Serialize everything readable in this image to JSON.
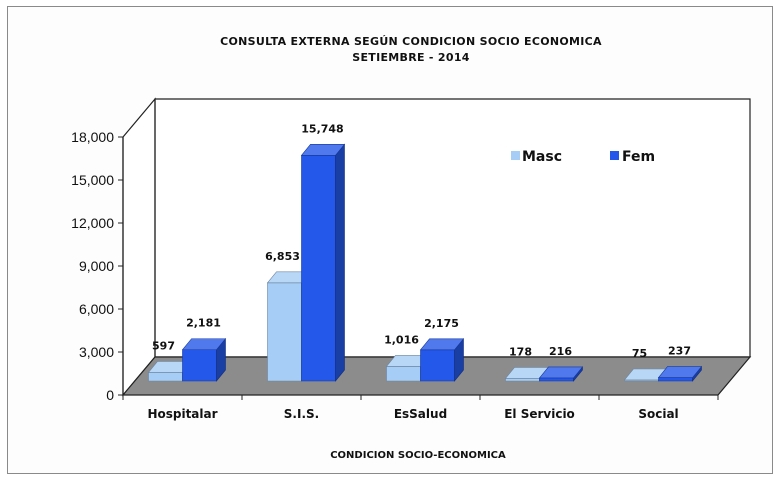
{
  "chart_data": {
    "type": "bar",
    "title": "CONSULTA EXTERNA SEGÚN CONDICION SOCIO ECONOMICA",
    "subtitle": "SETIEMBRE   - 2014",
    "xlabel": "CONDICION SOCIO-ECONOMICA",
    "ylabel": "",
    "categories": [
      "Hospitalar",
      "S.I.S.",
      "EsSalud",
      "El Servicio",
      "Social"
    ],
    "series": [
      {
        "name": "Masc",
        "values": [
          597,
          6853,
          1016,
          178,
          75
        ],
        "labels": [
          "597",
          "6,853",
          "1,016",
          "178",
          "75"
        ],
        "color": "#a6cdf5"
      },
      {
        "name": "Fem",
        "values": [
          2181,
          15748,
          2175,
          216,
          237
        ],
        "labels": [
          "2,181",
          "15,748",
          "2,175",
          "216",
          "237"
        ],
        "color": "#2458ea"
      }
    ],
    "yticks": [
      "0",
      "3,000",
      "6,000",
      "9,000",
      "12,000",
      "15,000",
      "18,000"
    ],
    "ylim": [
      0,
      18000
    ],
    "legend_position": "top-right",
    "style": "3d-column",
    "grid": false
  }
}
